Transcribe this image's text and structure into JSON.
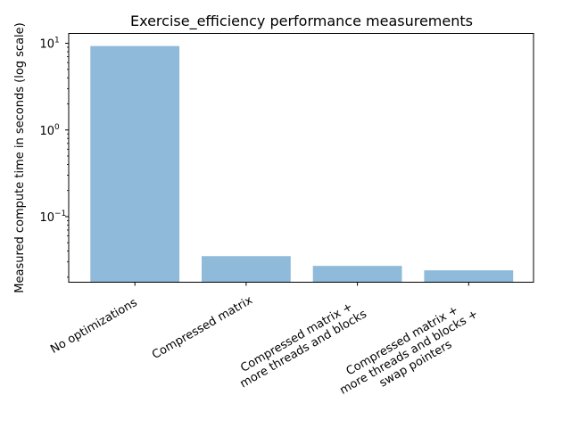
{
  "chart_data": {
    "type": "bar",
    "title": "Exercise_efficiency performance measurements",
    "xlabel": "",
    "ylabel": "Measured compute time in seconds (log scale)",
    "yscale": "log",
    "ylim": [
      0.0175,
      13
    ],
    "grid": false,
    "categories": [
      "No optimizations",
      "Compressed matrix",
      "Compressed matrix +\nmore threads and blocks",
      "Compressed matrix +\nmore threads and blocks +\nswap pointers"
    ],
    "values": [
      9.3,
      0.035,
      0.027,
      0.024
    ],
    "yticks": [
      {
        "value": 0.1,
        "base": "10",
        "exp": "−1"
      },
      {
        "value": 1,
        "base": "10",
        "exp": "0"
      },
      {
        "value": 10,
        "base": "10",
        "exp": "1"
      }
    ],
    "bar_color": "#8fbad9"
  }
}
